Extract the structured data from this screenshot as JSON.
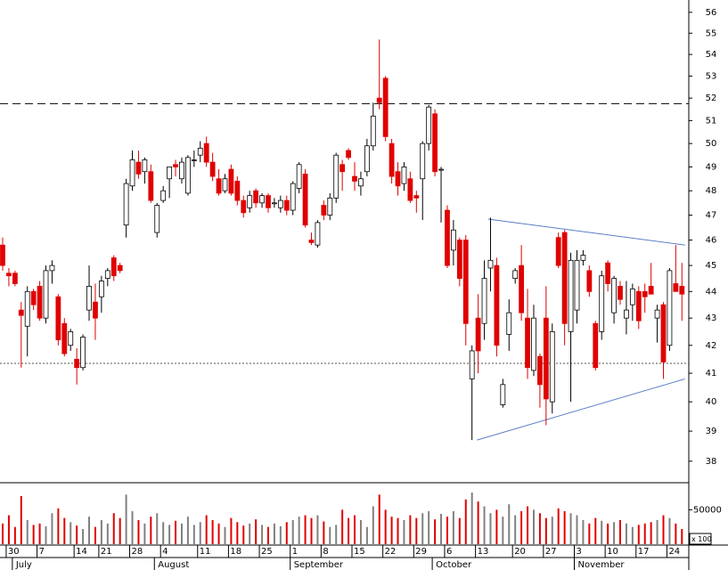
{
  "chart_data": {
    "type": "candlestick",
    "log": true,
    "ylim": [
      37.3,
      56.6
    ],
    "yticks": [
      38,
      39,
      40,
      41,
      42,
      43,
      44,
      45,
      46,
      47,
      48,
      49,
      50,
      51,
      52,
      53,
      54,
      55,
      56
    ],
    "up_color": "#ffffff",
    "down_color": "#e00000",
    "volume_up_color": "#808080",
    "volume_down_color": "#e00000",
    "hlines": [
      {
        "value": 51.75,
        "style": "dashed"
      },
      {
        "value": 41.35,
        "style": "dotted"
      }
    ],
    "trendlines": [
      {
        "start": [
          78.6,
          46.84
        ],
        "end": [
          110.5,
          45.8
        ]
      },
      {
        "start": [
          76.8,
          38.7
        ],
        "end": [
          110.5,
          40.8
        ]
      }
    ],
    "categories": [
      null,
      "30",
      null,
      null,
      null,
      null,
      "7",
      null,
      null,
      null,
      null,
      null,
      "14",
      null,
      null,
      null,
      "21",
      null,
      null,
      null,
      null,
      "28",
      null,
      null,
      null,
      null,
      "4",
      null,
      null,
      null,
      null,
      null,
      "11",
      null,
      null,
      null,
      null,
      "18",
      null,
      null,
      null,
      null,
      "25",
      null,
      null,
      null,
      null,
      "1",
      null,
      null,
      null,
      null,
      "8",
      null,
      null,
      null,
      null,
      "15",
      null,
      null,
      null,
      null,
      "22",
      null,
      null,
      null,
      null,
      "29",
      null,
      null,
      null,
      null,
      "6",
      null,
      null,
      null,
      null,
      "13",
      null,
      null,
      null,
      null,
      null,
      "20",
      null,
      null,
      null,
      null,
      "27",
      null,
      null,
      null,
      null,
      "3",
      null,
      null,
      null,
      null,
      "10",
      null,
      null,
      null,
      null,
      "17",
      null,
      null,
      null,
      null,
      "24",
      null,
      null
    ],
    "months": [
      null,
      null,
      "July",
      null,
      null,
      null,
      null,
      null,
      null,
      null,
      null,
      null,
      null,
      null,
      null,
      null,
      null,
      null,
      null,
      null,
      null,
      null,
      null,
      null,
      null,
      "August",
      null,
      null,
      null,
      null,
      null,
      null,
      null,
      null,
      null,
      null,
      null,
      null,
      null,
      null,
      null,
      null,
      null,
      null,
      null,
      null,
      null,
      "September",
      null,
      null,
      null,
      null,
      null,
      null,
      null,
      null,
      null,
      null,
      null,
      null,
      null,
      null,
      null,
      null,
      null,
      null,
      null,
      null,
      null,
      null,
      "October",
      null,
      null,
      null,
      null,
      null,
      null,
      null,
      null,
      null,
      null,
      null,
      null,
      null,
      null,
      null,
      null,
      null,
      null,
      null,
      null,
      null,
      null,
      "November",
      null,
      null,
      null,
      null,
      null,
      null,
      null,
      null,
      null,
      null,
      null,
      null,
      null,
      null,
      null,
      null,
      null
    ],
    "open": [
      45.8,
      44.7,
      44.7,
      43.3,
      42.7,
      44.0,
      44.2,
      43.0,
      44.8,
      43.8,
      42.8,
      42.0,
      41.5,
      41.2,
      43.3,
      43.6,
      43.8,
      44.5,
      45.3,
      45.0,
      46.6,
      48.2,
      49.2,
      48.8,
      48.8,
      46.3,
      47.6,
      48.5,
      49.1,
      48.5,
      47.9,
      49.3,
      49.5,
      50.0,
      49.2,
      48.5,
      48.0,
      48.9,
      48.4,
      47.6,
      47.3,
      48.0,
      47.5,
      47.8,
      47.5,
      47.3,
      47.6,
      47.2,
      48.1,
      48.7,
      46.0,
      45.8,
      47.4,
      47.0,
      47.7,
      49.1,
      49.7,
      48.6,
      48.2,
      48.8,
      49.9,
      52.0,
      52.9,
      50.0,
      48.8,
      48.3,
      48.5,
      47.8,
      48.5,
      50.0,
      51.3,
      48.9,
      47.2,
      45.6,
      46.0,
      46.0,
      40.8,
      43.0,
      42.8,
      44.9,
      45.0,
      39.9,
      42.4,
      44.5,
      45.0,
      43.0,
      41.1,
      41.6,
      43.0,
      40.0,
      46.1,
      46.3,
      42.5,
      43.3,
      45.2,
      44.8,
      42.8,
      42.5,
      45.1,
      43.2,
      44.2,
      43.0,
      43.5,
      44.0,
      44.0,
      44.2,
      43.0,
      43.5,
      42.0,
      44.3,
      44.2
    ],
    "high": [
      46.1,
      44.9,
      44.8,
      43.6,
      44.2,
      44.1,
      44.4,
      45.0,
      45.2,
      43.9,
      43.0,
      42.6,
      41.9,
      42.4,
      45.0,
      44.3,
      44.6,
      44.9,
      45.4,
      45.1,
      48.5,
      49.7,
      49.7,
      49.4,
      49.1,
      47.5,
      48.2,
      49.0,
      49.3,
      49.4,
      49.5,
      49.7,
      50.1,
      50.3,
      49.6,
      48.9,
      48.7,
      49.1,
      48.6,
      47.8,
      48.0,
      48.1,
      47.9,
      47.9,
      47.7,
      47.8,
      47.8,
      48.4,
      49.2,
      48.9,
      46.3,
      46.8,
      47.6,
      47.9,
      49.6,
      49.3,
      49.8,
      49.2,
      48.8,
      50.2,
      51.8,
      54.7,
      53.0,
      50.2,
      49.2,
      49.2,
      48.8,
      48.0,
      50.1,
      51.7,
      51.5,
      49.0,
      47.4,
      46.8,
      46.1,
      46.2,
      42.0,
      43.9,
      45.2,
      46.9,
      45.3,
      40.8,
      43.7,
      44.9,
      45.8,
      44.1,
      43.5,
      41.7,
      44.2,
      42.8,
      46.3,
      46.4,
      45.5,
      45.6,
      45.6,
      45.0,
      42.9,
      44.8,
      45.2,
      44.6,
      44.4,
      44.4,
      44.3,
      44.2,
      44.3,
      45.1,
      43.5,
      43.6,
      44.9,
      45.8,
      45.1
    ],
    "low": [
      44.8,
      44.2,
      44.2,
      41.2,
      41.6,
      43.3,
      42.9,
      42.8,
      44.3,
      42.0,
      41.6,
      41.8,
      40.6,
      41.1,
      42.9,
      42.2,
      43.2,
      44.2,
      44.4,
      44.7,
      46.1,
      48.0,
      48.5,
      48.3,
      47.5,
      46.1,
      47.5,
      47.7,
      48.6,
      48.3,
      47.8,
      49.0,
      49.2,
      49.0,
      48.4,
      47.8,
      47.9,
      47.8,
      47.4,
      46.9,
      47.1,
      47.3,
      47.3,
      47.1,
      47.3,
      47.1,
      47.0,
      47.0,
      47.9,
      46.5,
      45.8,
      45.7,
      46.8,
      46.8,
      47.5,
      48.0,
      49.3,
      48.0,
      47.8,
      48.6,
      49.7,
      51.5,
      50.1,
      48.3,
      47.8,
      48.0,
      47.5,
      47.1,
      46.8,
      49.7,
      48.6,
      46.7,
      44.9,
      45.0,
      44.2,
      42.0,
      38.7,
      41.0,
      42.2,
      44.0,
      41.6,
      39.8,
      41.8,
      44.3,
      42.9,
      40.8,
      40.9,
      39.8,
      39.2,
      39.6,
      44.9,
      42.0,
      40.0,
      42.8,
      45.0,
      43.8,
      41.1,
      42.2,
      44.0,
      42.8,
      43.5,
      42.4,
      42.9,
      42.6,
      43.2,
      43.9,
      42.1,
      40.8,
      41.8,
      44.0,
      42.9
    ],
    "close": [
      45.0,
      44.6,
      44.3,
      43.1,
      44.0,
      43.5,
      43.0,
      44.8,
      45.0,
      42.2,
      41.7,
      42.5,
      41.2,
      42.3,
      44.2,
      43.0,
      44.4,
      44.8,
      44.6,
      44.8,
      48.3,
      49.3,
      48.7,
      49.3,
      47.6,
      47.4,
      48.0,
      49.0,
      49.0,
      49.2,
      49.4,
      49.3,
      49.8,
      49.2,
      48.6,
      47.9,
      48.5,
      47.9,
      47.6,
      47.1,
      47.8,
      47.5,
      47.8,
      47.3,
      47.5,
      47.6,
      47.2,
      48.3,
      49.1,
      46.6,
      45.9,
      46.7,
      47.0,
      47.7,
      49.5,
      48.8,
      49.4,
      48.4,
      48.5,
      49.9,
      51.2,
      51.8,
      50.3,
      48.6,
      48.2,
      49.0,
      47.6,
      47.7,
      50.0,
      51.6,
      48.8,
      48.9,
      45.0,
      46.4,
      44.5,
      42.8,
      41.8,
      41.8,
      44.5,
      45.2,
      42.0,
      40.6,
      43.2,
      44.8,
      43.2,
      41.2,
      43.0,
      40.6,
      40.1,
      42.5,
      45.0,
      42.8,
      45.2,
      45.2,
      45.4,
      44.0,
      41.2,
      44.6,
      44.3,
      44.5,
      43.7,
      43.3,
      44.1,
      42.9,
      43.8,
      43.9,
      43.3,
      41.4,
      44.8,
      44.0,
      43.9
    ],
    "volume": [
      30000,
      42000,
      25000,
      70000,
      35000,
      28000,
      30000,
      26000,
      45000,
      52000,
      38000,
      32000,
      27000,
      22000,
      40000,
      25000,
      35000,
      30000,
      45000,
      38000,
      72000,
      48000,
      35000,
      30000,
      40000,
      45000,
      32000,
      28000,
      34000,
      30000,
      40000,
      28000,
      32000,
      42000,
      35000,
      30000,
      25000,
      38000,
      32000,
      27000,
      30000,
      36000,
      28000,
      25000,
      30000,
      26000,
      32000,
      35000,
      40000,
      42000,
      38000,
      42000,
      33000,
      25000,
      28000,
      50000,
      38000,
      42000,
      35000,
      25000,
      55000,
      72000,
      50000,
      40000,
      38000,
      35000,
      42000,
      38000,
      45000,
      48000,
      36000,
      44000,
      40000,
      48000,
      38000,
      65000,
      75000,
      62000,
      55000,
      45000,
      50000,
      40000,
      58000,
      42000,
      48000,
      55000,
      50000,
      45000,
      38000,
      40000,
      52000,
      48000,
      45000,
      42000,
      35000,
      30000,
      38000,
      34000,
      30000,
      32000,
      35000,
      30000,
      25000,
      28000,
      30000,
      32000,
      35000,
      42000,
      38000,
      30000,
      22000
    ],
    "volume_ylim": [
      0,
      88000
    ],
    "volume_yticks": [
      50000
    ],
    "volume_unit": "x 100"
  }
}
